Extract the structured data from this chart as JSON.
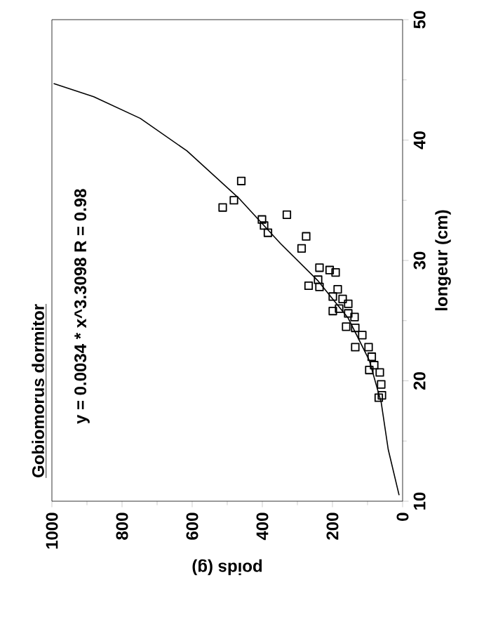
{
  "chart_data": {
    "type": "scatter",
    "title": "Gobiomorus dormitor",
    "xlabel": "poids (g)",
    "ylabel": "longeur (cm)",
    "annotations": [
      "y = 0.0034 * x^3.3098   R = 0.98"
    ],
    "xlim": [
      1000,
      0
    ],
    "xticks": [
      1000,
      800,
      600,
      400,
      200,
      0
    ],
    "ylim": [
      10,
      50
    ],
    "yticks": [
      10,
      20,
      30,
      40,
      50
    ],
    "series": [
      {
        "color": "#000000",
        "marker": "square",
        "x": [
          460,
          513,
          481,
          330,
          401,
          395,
          384,
          275,
          288,
          237,
          208,
          191,
          241,
          268,
          237,
          185,
          199,
          171,
          155,
          199,
          181,
          155,
          137,
          161,
          135,
          115,
          135,
          97,
          88,
          81,
          65,
          61,
          59,
          68,
          95
        ],
        "values": [
          36.6,
          34.4,
          35.0,
          33.8,
          33.4,
          32.9,
          32.3,
          32.0,
          31.0,
          29.4,
          29.2,
          29.0,
          28.4,
          27.9,
          27.8,
          27.6,
          27.0,
          26.8,
          26.4,
          25.8,
          26.0,
          25.6,
          25.3,
          24.5,
          24.4,
          23.8,
          22.8,
          22.8,
          22.0,
          21.3,
          20.7,
          19.7,
          18.8,
          18.6,
          20.9
        ]
      },
      {
        "type": "line",
        "color": "#000000",
        "marker": "none",
        "x": [
          10,
          41,
          61,
          95,
          155,
          241,
          348,
          468,
          615,
          748,
          881,
          995
        ],
        "values": [
          10.5,
          14.3,
          18.2,
          21.7,
          25.2,
          28.3,
          31.4,
          35.2,
          39.1,
          41.8,
          43.6,
          44.7
        ]
      }
    ]
  }
}
